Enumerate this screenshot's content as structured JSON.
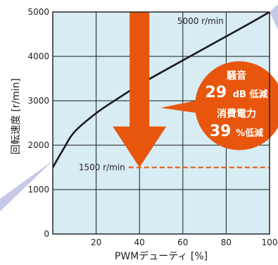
{
  "chart_data": {
    "type": "line",
    "xlabel": "PWMデューティ [%]",
    "ylabel": "回転速度 [r/min]",
    "xlim": [
      0,
      100
    ],
    "ylim": [
      0,
      5000
    ],
    "x_ticks": [
      "20",
      "40",
      "60",
      "80",
      "100"
    ],
    "y_ticks": [
      "0",
      "1000",
      "2000",
      "3000",
      "4000",
      "5000"
    ],
    "grid": true,
    "series": [
      {
        "x": [
          0,
          5,
          10,
          20,
          30,
          40,
          50,
          60,
          70,
          80,
          90,
          100
        ],
        "y": [
          1500,
          1920,
          2300,
          2720,
          3050,
          3360,
          3640,
          3910,
          4180,
          4450,
          4720,
          5000
        ]
      }
    ],
    "reference_line": {
      "y": 1500,
      "x_start": 35,
      "x_end": 100,
      "label": "1500 r/min"
    },
    "top_label": "5000 r/min",
    "arrow": {
      "x": 40,
      "y_from": 5000,
      "y_to": 1500
    },
    "callout": {
      "noise_title": "騒音",
      "noise_value": "29",
      "noise_unit": "dB 低減",
      "power_title": "消費電力",
      "power_value": "39",
      "power_unit": "%低減"
    },
    "colors": {
      "plot_bg": "#d7ecf3",
      "curve": "#1a1a1a",
      "arrow": "#e8560d",
      "dashed": "#e8560d",
      "callout": "#e8560d",
      "pointer": "#c5c8e6"
    }
  }
}
